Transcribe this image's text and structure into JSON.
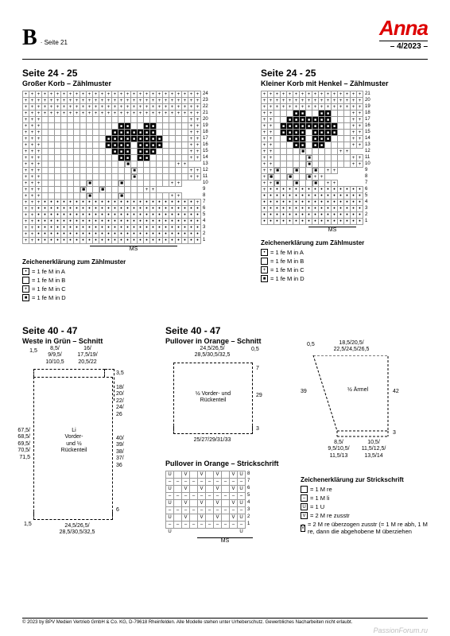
{
  "header": {
    "b": "B",
    "seite": "· Seite 21",
    "brand": "Anna",
    "issue": "– 4/2023 –"
  },
  "leftChart": {
    "title": "Seite 24 - 25",
    "sub": "Großer Korb – Zählmuster",
    "rows": 24,
    "cols": 28,
    "rowLabels": [
      "24",
      "23",
      "22",
      "21",
      "20",
      "19",
      "18",
      "17",
      "16",
      "15",
      "14",
      "13",
      "12",
      "11",
      "10",
      "9",
      "8",
      "7",
      "6",
      "5",
      "4",
      "3",
      "2",
      "1"
    ],
    "pattern": [
      "++++++++++++++++++++++++++++",
      "++++++++++++++++++++++++++++",
      "++++++++++++++++++++++++++++",
      "++++++++++++++++++++++++++++",
      "+++                       ++",
      "+++            BB  BB     ++",
      "+++           BBBBBBB     ++",
      "+++          BBBBBBBBB    ++",
      "+++          BBBB BBBB    ++",
      "+++           BBB BBB     ++",
      "+++            BB BB      ++",
      "+++             xxx       ++",
      "+++              x        ++",
      "+++              x        ++",
      "+++       xx    xxx       ++",
      "+++      xxxx  xxxxx      ++",
      "+++       xx    xxx       ++",
      "+++oooooooooooooooooooooooo+",
      "++oooooooooooooooooooooooooo",
      "++oooooooooooooooooooooooooo",
      "++oooooooooooooooooooooooooo",
      "++oooooooooooooooooooooooooo",
      "++oooooooooooooooooooooooooo",
      "++oooooooooooooooooooooooooo"
    ],
    "ms": "MS"
  },
  "rightChart": {
    "title": "Seite 24 - 25",
    "sub": "Kleiner Korb mit Henkel – Zählmuster",
    "rows": 21,
    "cols": 16,
    "rowLabels": [
      "21",
      "20",
      "19",
      "18",
      "17",
      "16",
      "15",
      "14",
      "13",
      "12",
      "11",
      "10",
      "9",
      "8",
      "7",
      "6",
      "5",
      "4",
      "3",
      "2",
      "1"
    ],
    "pattern": [
      "++++++++++++++++",
      "++++++++++++++++",
      "++++++++++++++++",
      "++   BB  BB   ++",
      "++  BBBBBBB   ++",
      "++ BBBBBBBBB  ++",
      "++ BBBB BBBB  ++",
      "++  BBB BBB   ++",
      "++   BB BB    ++",
      "++    xxx     ++",
      "++     x      ++",
      "++     x      ++",
      "++xx  xxx  xx ++",
      "+xxx  xxx  xxx++",
      "++xx  xxx  xx ++",
      "+ooooooooooooooo",
      "oooooooooooooooo",
      "oooooooooooooooo",
      "oooooooooooooooo",
      "oooooooooooooooo",
      "oooooooooooooooo"
    ],
    "ms": "MS"
  },
  "legend": {
    "title": "Zeichenerklärung zum Zählmuster",
    "items": [
      {
        "sym": "•",
        "txt": "= 1 fe M in A"
      },
      {
        "sym": "",
        "txt": "= 1 fe M in B"
      },
      {
        "sym": "+",
        "txt": "= 1 fe M in C"
      },
      {
        "sym": "■",
        "txt": "= 1 fe M in D"
      }
    ]
  },
  "weste": {
    "title": "Seite 40 - 47",
    "sub": "Weste in Grün – Schnitt",
    "top1": "1,5",
    "top2": "8,5/\n9/9,5/\n10/10,5",
    "top3": "16/\n17,5/19/\n20,5/22",
    "top_r": "3,5",
    "side_r": "18/\n20/\n22/\n24/\n26",
    "side_l": "67,5/\n68,5/\n69,5/\n70,5/\n71,5",
    "body": "Li\nVorder-\nund ½\nRückenteil",
    "r2": "40/\n39/\n38/\n37/\n36",
    "bot_r": "6",
    "bot_l": "1,5",
    "bot": "24,5/26,5/\n28,5/30,5/32,5"
  },
  "pullover": {
    "title": "Seite 40 - 47",
    "sub": "Pullover in Orange – Schnitt",
    "top": "24,5/26,5/\n28,5/30,5/32,5",
    "top_r05": "0,5",
    "side_r7": "7",
    "body": "½ Vorder- und\nRückenteil",
    "side_r": "29",
    "bot_r": "3",
    "bot": "25/27/29/31/33",
    "ss_title": "Pullover in Orange – Strickschrift",
    "arm_top1": "0,5",
    "arm_top2": "18,5/20,5/\n22,5/24,5/26,5",
    "arm_body": "½ Ärmel",
    "arm_l": "39",
    "arm_r": "42",
    "arm_bot1": "8,5/\n9,5/10,5/\n11,5/13",
    "arm_bot2": "10,5/\n11,5/12,5/\n13,5/14",
    "arm_bot_r": "3"
  },
  "strickschrift": {
    "rowLabels": [
      "8",
      "7",
      "6",
      "5",
      "4",
      "3",
      "2",
      "1"
    ],
    "colLabels": [
      "U",
      "",
      "",
      "",
      "",
      "",
      "",
      "",
      "U"
    ],
    "ms": "MS"
  },
  "legend2": {
    "title": "Zeichenerklärung zur Strickschrift",
    "items": [
      {
        "sym": "",
        "txt": "= 1 M re"
      },
      {
        "sym": "–",
        "txt": "= 1 M li"
      },
      {
        "sym": "U",
        "txt": "= 1 U"
      },
      {
        "sym": "V",
        "txt": "= 2 M re zusstr"
      },
      {
        "sym": "V̄",
        "txt": "= 2 M re überzogen zusstr (= 1 M re abh, 1 M re, dann die abgehobene M überziehen"
      }
    ]
  },
  "footer": "© 2023 by BPV Medien Vertrieb GmbH & Co. KG, D-79618 Rheinfelden. Alle Modelle stehen unter Urheberschutz. Gewerbliches Nacharbeiten nicht erlaubt.",
  "watermark": "PassionForum.ru",
  "colors": {
    "accent": "#d00000",
    "grid": "#999999"
  }
}
